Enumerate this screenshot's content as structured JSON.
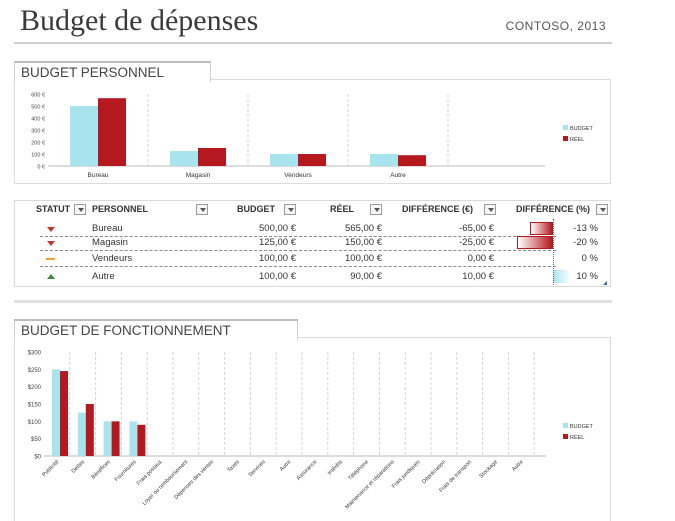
{
  "header": {
    "title": "Budget de dépenses",
    "company": "CONTOSO, 2013"
  },
  "personal": {
    "section_title": "BUDGET PERSONNEL",
    "table": {
      "columns": [
        "STATUT",
        "PERSONNEL",
        "BUDGET",
        "RÉEL",
        "DIFFÉRENCE (€)",
        "DIFFÉRENCE (%)"
      ],
      "rows": [
        {
          "status": "down",
          "name": "Bureau",
          "budget": "500,00 €",
          "actual": "565,00 €",
          "diff": "-65,00 €",
          "pct": "-13 %",
          "pct_value": -13
        },
        {
          "status": "down",
          "name": "Magasin",
          "budget": "125,00 €",
          "actual": "150,00 €",
          "diff": "-25,00 €",
          "pct": "-20 %",
          "pct_value": -20
        },
        {
          "status": "flat",
          "name": "Vendeurs",
          "budget": "100,00 €",
          "actual": "100,00 €",
          "diff": "0,00 €",
          "pct": "0 %",
          "pct_value": 0
        },
        {
          "status": "up",
          "name": "Autre",
          "budget": "100,00 €",
          "actual": "90,00 €",
          "diff": "10,00 €",
          "pct": "10 %",
          "pct_value": 10
        }
      ]
    },
    "status_colors": {
      "down": "#c0392b",
      "flat": "#f0a030",
      "up": "#3a8a3a"
    }
  },
  "operating": {
    "section_title": "BUDGET DE FONCTIONNEMENT"
  },
  "colors": {
    "budget": "#a8e4ee",
    "actual": "#b5191f"
  },
  "chart_data": [
    {
      "type": "bar",
      "categories": [
        "Bureau",
        "Magasin",
        "Vendeurs",
        "Autre"
      ],
      "series": [
        {
          "name": "BUDGET",
          "values": [
            500,
            125,
            100,
            100
          ]
        },
        {
          "name": "RÉEL",
          "values": [
            565,
            150,
            100,
            90
          ]
        }
      ],
      "yticks": [
        "0 €",
        "100 €",
        "200 €",
        "300 €",
        "400 €",
        "500 €",
        "600 €"
      ],
      "ylim": [
        0,
        600
      ],
      "legend": "right"
    },
    {
      "type": "bar",
      "categories": [
        "Publicité",
        "Dettes",
        "Bénéfices",
        "Fournitures",
        "Frais postaux",
        "Loyer ou remboursement",
        "Dépenses des ventes",
        "Taxes",
        "Services",
        "Autre",
        "Assurance",
        "Intérêts",
        "Téléphone",
        "Maintenance et réparations",
        "Frais juridiques",
        "Dépréciation",
        "Frais de transport",
        "Stockage",
        "Autre"
      ],
      "series": [
        {
          "name": "BUDGET",
          "values": [
            250,
            125,
            100,
            100,
            0,
            0,
            0,
            0,
            0,
            0,
            0,
            0,
            0,
            0,
            0,
            0,
            0,
            0,
            0
          ]
        },
        {
          "name": "RÉEL",
          "values": [
            245,
            150,
            100,
            90,
            0,
            0,
            0,
            0,
            0,
            0,
            0,
            0,
            0,
            0,
            0,
            0,
            0,
            0,
            0
          ]
        }
      ],
      "yticks": [
        "$0",
        "$50",
        "$100",
        "$150",
        "$200",
        "$250",
        "$300"
      ],
      "ylim": [
        0,
        300
      ],
      "legend": "right"
    }
  ]
}
